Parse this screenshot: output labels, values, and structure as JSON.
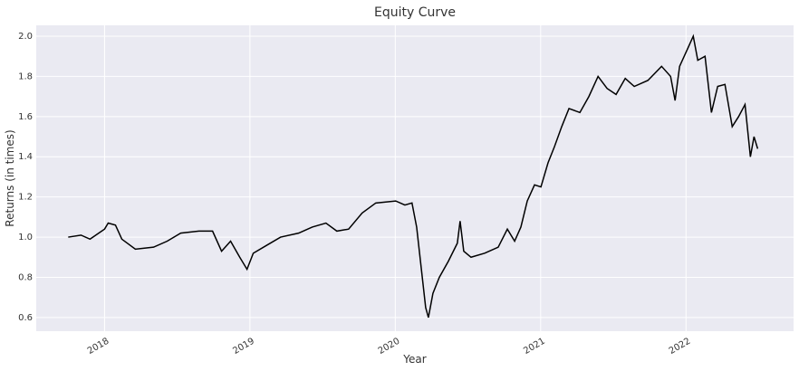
{
  "chart_data": {
    "type": "line",
    "title": "Equity Curve",
    "x_label": "Year",
    "y_label": "Returns (in times)",
    "xlim": [
      2017.53,
      2022.74
    ],
    "xticks": [
      2018,
      2019,
      2020,
      2021,
      2022
    ],
    "ylim": [
      0.532,
      2.054
    ],
    "yticks": [
      0.6,
      0.8,
      {
        "value": 1.0,
        "label": "1.0"
      },
      1.2,
      1.4,
      1.6,
      1.8,
      {
        "value": 2.0,
        "label": "2.0"
      }
    ],
    "grid": true,
    "background": "#eaeaf2",
    "x": [
      2017.75,
      2017.838,
      2017.9,
      2018.0,
      2018.025,
      2018.075,
      2018.119,
      2018.212,
      2018.337,
      2018.431,
      2018.524,
      2018.649,
      2018.743,
      2018.805,
      2018.867,
      2018.93,
      2018.98,
      2019.023,
      2019.117,
      2019.211,
      2019.335,
      2019.429,
      2019.523,
      2019.598,
      2019.679,
      2019.772,
      2019.866,
      2020.003,
      2020.066,
      2020.115,
      2020.147,
      2020.178,
      2020.209,
      2020.228,
      2020.259,
      2020.303,
      2020.365,
      2020.427,
      2020.446,
      2020.471,
      2020.521,
      2020.615,
      2020.708,
      2020.771,
      2020.821,
      2020.864,
      2020.908,
      2020.958,
      2021.002,
      2021.051,
      2021.095,
      2021.145,
      2021.195,
      2021.27,
      2021.332,
      2021.395,
      2021.457,
      2021.519,
      2021.582,
      2021.644,
      2021.738,
      2021.832,
      2021.894,
      2021.925,
      2021.956,
      2022.019,
      2022.05,
      2022.081,
      2022.131,
      2022.175,
      2022.218,
      2022.268,
      2022.318,
      2022.362,
      2022.406,
      2022.443,
      2022.468,
      2022.493
    ],
    "series": [
      {
        "name": "Equity",
        "color": "#000000",
        "values": [
          1.0,
          1.01,
          0.99,
          1.04,
          1.07,
          1.06,
          0.99,
          0.94,
          0.95,
          0.98,
          1.02,
          1.03,
          1.03,
          0.93,
          0.98,
          0.9,
          0.84,
          0.92,
          0.96,
          1.0,
          1.02,
          1.05,
          1.07,
          1.03,
          1.04,
          1.12,
          1.17,
          1.18,
          1.16,
          1.17,
          1.05,
          0.85,
          0.65,
          0.6,
          0.72,
          0.8,
          0.88,
          0.97,
          1.08,
          0.93,
          0.9,
          0.92,
          0.95,
          1.04,
          0.98,
          1.05,
          1.18,
          1.26,
          1.25,
          1.37,
          1.45,
          1.55,
          1.64,
          1.62,
          1.7,
          1.8,
          1.74,
          1.71,
          1.79,
          1.75,
          1.78,
          1.85,
          1.8,
          1.68,
          1.85,
          1.95,
          2.0,
          1.88,
          1.9,
          1.62,
          1.75,
          1.76,
          1.55,
          1.6,
          1.66,
          1.4,
          1.5,
          1.44
        ]
      }
    ]
  }
}
